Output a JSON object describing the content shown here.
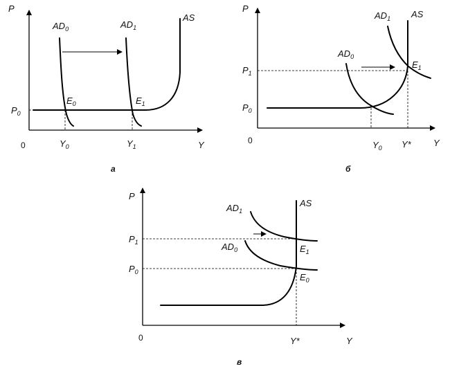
{
  "panel_a": {
    "axis_y": "P",
    "axis_x": "Y",
    "origin": "0",
    "p0": {
      "base": "P",
      "sub": "0"
    },
    "y0": {
      "base": "Y",
      "sub": "0"
    },
    "y1": {
      "base": "Y",
      "sub": "1"
    },
    "ad0": {
      "base": "AD",
      "sub": "0"
    },
    "ad1": {
      "base": "AD",
      "sub": "1"
    },
    "as": "AS",
    "e0": {
      "base": "E",
      "sub": "0"
    },
    "e1": {
      "base": "E",
      "sub": "1"
    },
    "caption": "а"
  },
  "panel_b": {
    "axis_y": "P",
    "axis_x": "Y",
    "origin": "0",
    "p0": {
      "base": "P",
      "sub": "0"
    },
    "p1": {
      "base": "P",
      "sub": "1"
    },
    "y0": {
      "base": "Y",
      "sub": "0"
    },
    "ystar": "Y*",
    "ad0": {
      "base": "AD",
      "sub": "0"
    },
    "ad1": {
      "base": "AD",
      "sub": "1"
    },
    "as": "AS",
    "e1": {
      "base": "E",
      "sub": "1"
    },
    "caption": "б"
  },
  "panel_c": {
    "axis_y": "P",
    "axis_x": "Y",
    "origin": "0",
    "p0": {
      "base": "P",
      "sub": "0"
    },
    "p1": {
      "base": "P",
      "sub": "1"
    },
    "ystar": "Y*",
    "ad0": {
      "base": "AD",
      "sub": "0"
    },
    "ad1": {
      "base": "AD",
      "sub": "1"
    },
    "as": "AS",
    "e0": {
      "base": "E",
      "sub": "0"
    },
    "e1": {
      "base": "E",
      "sub": "1"
    },
    "caption": "в"
  }
}
